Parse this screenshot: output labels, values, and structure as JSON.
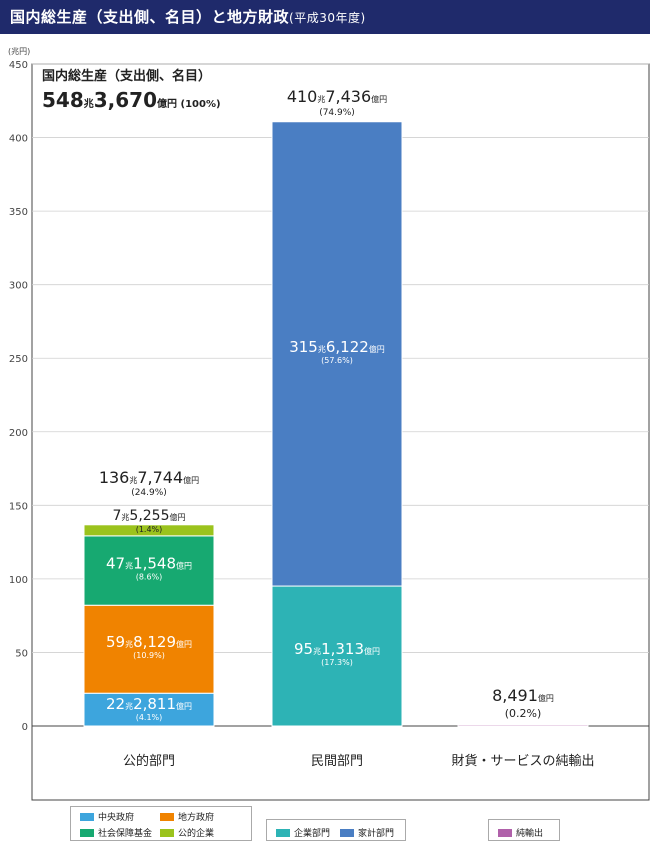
{
  "title": "国内総生産（支出側、名目）と地方財政",
  "title_note": "(平成30年度)",
  "chart_data": {
    "type": "bar",
    "stacked": true,
    "unit_label": "(兆円)",
    "ylim": [
      0,
      450
    ],
    "yticks": [
      0,
      50,
      100,
      150,
      200,
      250,
      300,
      350,
      400,
      450
    ],
    "categories": [
      "公的部門",
      "民間部門",
      "財貨・サービスの純輸出"
    ],
    "gdp_total": {
      "heading": "国内総生産（支出側、名目）",
      "cho": "548",
      "oku": "3,670",
      "pct": "(100%)",
      "cho_unit": "兆",
      "oku_unit": "億円"
    },
    "bar_totals": [
      {
        "cho": "136",
        "oku": "7,744",
        "pct": "(24.9%)"
      },
      {
        "cho": "410",
        "oku": "7,436",
        "pct": "(74.9%)"
      },
      {
        "cho": "",
        "oku": "8,491",
        "pct": "(0.2%)"
      }
    ],
    "segments": [
      {
        "category": 0,
        "name": "中央政府",
        "value": 22.2811,
        "cho": "22",
        "oku": "2,811",
        "pct": "(4.1%)",
        "color": "#3da5dd"
      },
      {
        "category": 0,
        "name": "地方政府",
        "value": 59.8129,
        "cho": "59",
        "oku": "8,129",
        "pct": "(10.9%)",
        "color": "#f08300"
      },
      {
        "category": 0,
        "name": "社会保障基金",
        "value": 47.1548,
        "cho": "47",
        "oku": "1,548",
        "pct": "(8.6%)",
        "color": "#17a971"
      },
      {
        "category": 0,
        "name": "公的企業",
        "value": 7.5255,
        "cho": "7",
        "oku": "5,255",
        "pct": "(1.4%)",
        "color": "#9bc31d"
      },
      {
        "category": 1,
        "name": "企業部門",
        "value": 95.1313,
        "cho": "95",
        "oku": "1,313",
        "pct": "(17.3%)",
        "color": "#2db3b5"
      },
      {
        "category": 1,
        "name": "家計部門",
        "value": 315.6122,
        "cho": "315",
        "oku": "6,122",
        "pct": "(57.6%)",
        "color": "#4a7ec3"
      },
      {
        "category": 2,
        "name": "純輸出",
        "value": 0.8491,
        "cho": "",
        "oku": "8,491",
        "pct": "(0.2%)",
        "color": "#b061aa"
      }
    ],
    "cho_unit": "兆",
    "oku_unit": "億円",
    "legend": [
      {
        "name": "中央政府",
        "color": "#3da5dd"
      },
      {
        "name": "地方政府",
        "color": "#f08300"
      },
      {
        "name": "社会保障基金",
        "color": "#17a971"
      },
      {
        "name": "公的企業",
        "color": "#9bc31d"
      },
      {
        "name": "企業部門",
        "color": "#2db3b5"
      },
      {
        "name": "家計部門",
        "color": "#4a7ec3"
      },
      {
        "name": "純輸出",
        "color": "#b061aa"
      }
    ]
  }
}
